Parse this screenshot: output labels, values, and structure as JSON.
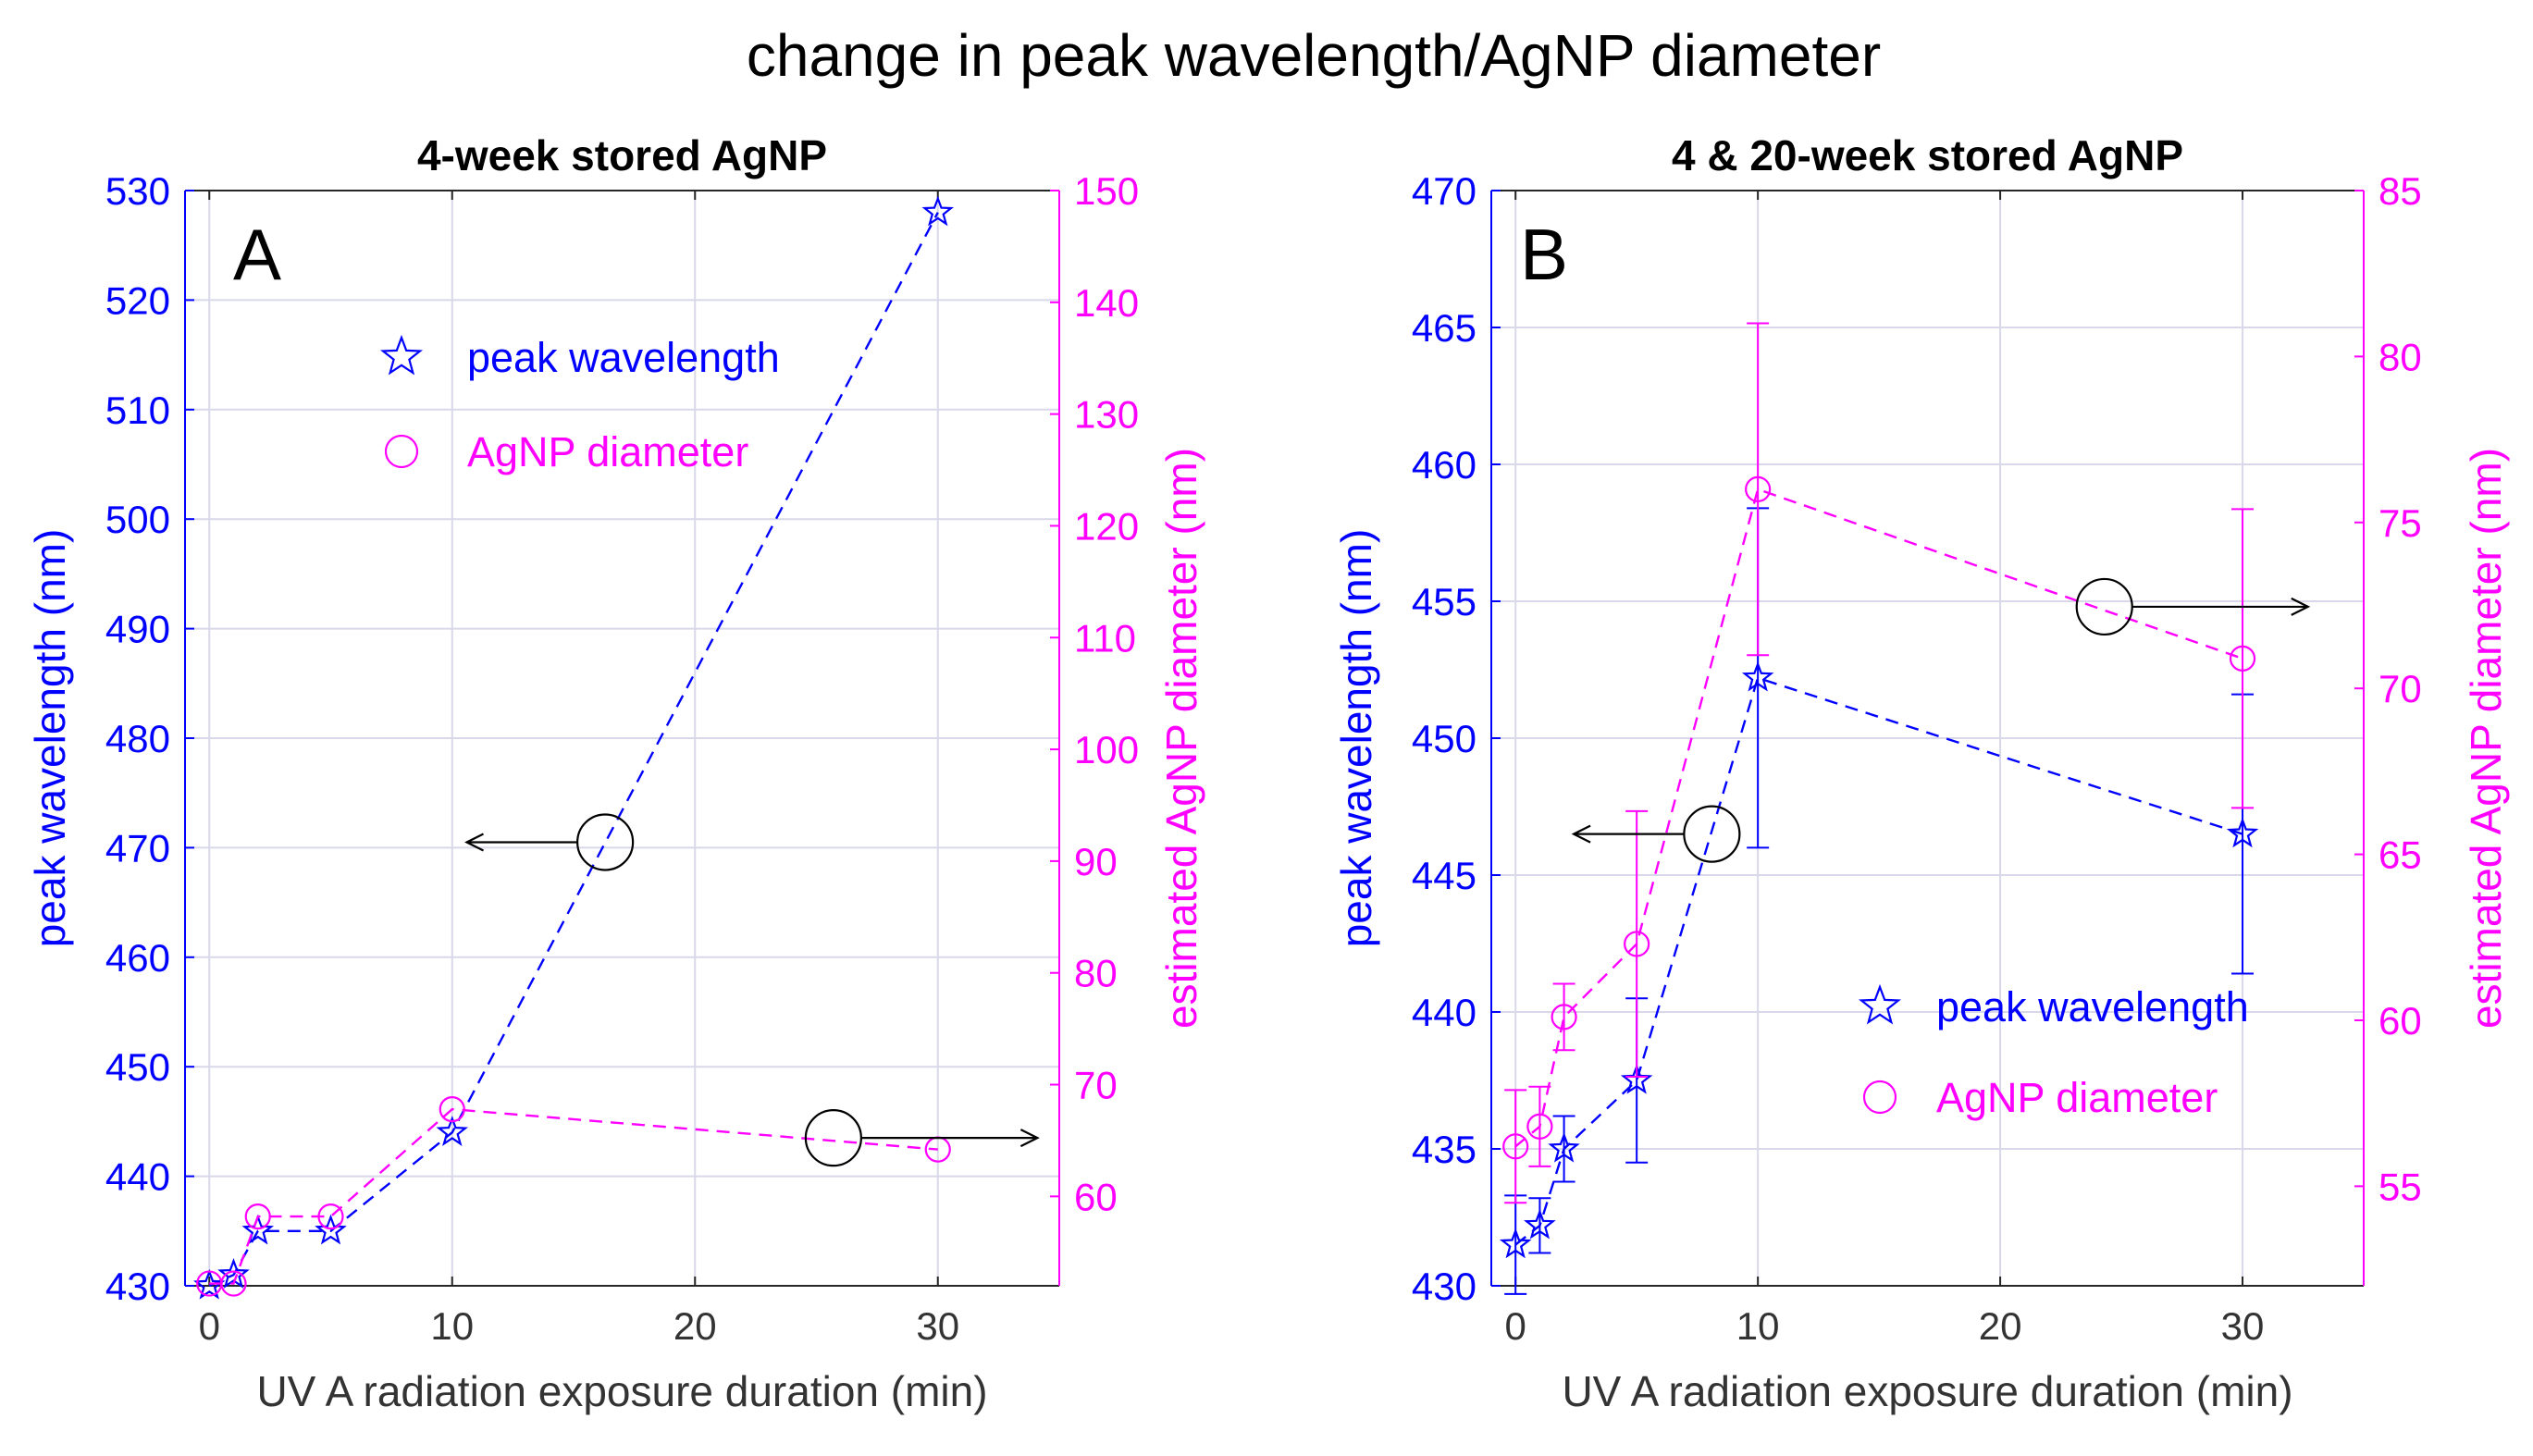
{
  "figure_title": "change in peak wavelength/AgNP diameter",
  "colors": {
    "wavelength": "#0000ff",
    "diameter": "#ff00ff",
    "axis_x": "#333333",
    "grid": "#d8d8ea",
    "annotation": "#000000"
  },
  "chart_data": [
    {
      "panel": "A",
      "type": "line",
      "title": "4-week stored AgNP",
      "xlabel": "UV A radiation exposure duration (min)",
      "ylabel_left": "peak wavelength (nm)",
      "ylabel_right": "estimated AgNP diameter (nm)",
      "xlim": [
        -1,
        35
      ],
      "ylim_left": [
        430,
        530
      ],
      "ylim_right": [
        52,
        150
      ],
      "xticks": [
        0,
        10,
        20,
        30
      ],
      "yticks_left": [
        430,
        440,
        450,
        460,
        470,
        480,
        490,
        500,
        510,
        520,
        530
      ],
      "yticks_right": [
        60,
        70,
        80,
        90,
        100,
        110,
        120,
        130,
        140,
        150
      ],
      "grid": true,
      "legend_position": "upper-center",
      "series": [
        {
          "name": "peak wavelength",
          "axis": "left",
          "marker": "star",
          "line": "dashed",
          "x": [
            0,
            1,
            2,
            5,
            10,
            30
          ],
          "values": [
            430,
            431,
            435,
            435,
            444,
            528
          ]
        },
        {
          "name": "AgNP diameter",
          "axis": "right",
          "marker": "circle",
          "line": "dashed",
          "x": [
            0,
            1,
            2,
            5,
            10,
            30
          ],
          "values": [
            52.2,
            52.2,
            58.2,
            58.2,
            67.8,
            64.2
          ]
        }
      ],
      "annotations": [
        {
          "marker_x": 16.3,
          "marker_y_left": 470.5,
          "arrow_to_x": 10.6,
          "direction": "left",
          "meaning": "peak wavelength uses left axis"
        },
        {
          "marker_x": 25.7,
          "marker_y_left": 443.5,
          "arrow_to_x": 34.1,
          "direction": "right",
          "meaning": "AgNP diameter uses right axis"
        }
      ]
    },
    {
      "panel": "B",
      "type": "line",
      "title": "4 & 20-week stored AgNP",
      "xlabel": "UV A radiation exposure duration (min)",
      "ylabel_left": "peak wavelength (nm)",
      "ylabel_right": "estimated AgNP diameter (nm)",
      "xlim": [
        -1,
        35
      ],
      "ylim_left": [
        430,
        470
      ],
      "ylim_right": [
        52,
        85
      ],
      "xticks": [
        0,
        10,
        20,
        30
      ],
      "yticks_left": [
        430,
        435,
        440,
        445,
        450,
        455,
        460,
        465,
        470
      ],
      "yticks_right": [
        55,
        60,
        65,
        70,
        75,
        80,
        85
      ],
      "grid": true,
      "legend_position": "lower-right",
      "series": [
        {
          "name": "peak wavelength",
          "axis": "left",
          "marker": "star",
          "line": "dashed",
          "x": [
            0,
            1,
            2,
            5,
            10,
            30
          ],
          "values": [
            431.5,
            432.2,
            435.0,
            437.5,
            452.2,
            446.5
          ],
          "error": [
            1.8,
            1.0,
            1.2,
            3.0,
            6.2,
            5.1
          ]
        },
        {
          "name": "AgNP diameter",
          "axis": "right",
          "marker": "circle",
          "line": "dashed",
          "x": [
            0,
            1,
            2,
            5,
            10,
            30
          ],
          "values": [
            56.2,
            56.8,
            60.1,
            62.3,
            76.0,
            70.9
          ],
          "error": [
            1.7,
            1.2,
            1.0,
            4.0,
            5.0,
            4.5
          ]
        }
      ],
      "annotations": [
        {
          "marker_x": 8.1,
          "marker_y_left": 446.5,
          "arrow_to_x": 2.4,
          "direction": "left",
          "meaning": "peak wavelength uses left axis"
        },
        {
          "marker_x": 24.3,
          "marker_y_left": 454.8,
          "arrow_to_x": 32.7,
          "direction": "right",
          "meaning": "AgNP diameter uses right axis"
        }
      ]
    }
  ]
}
